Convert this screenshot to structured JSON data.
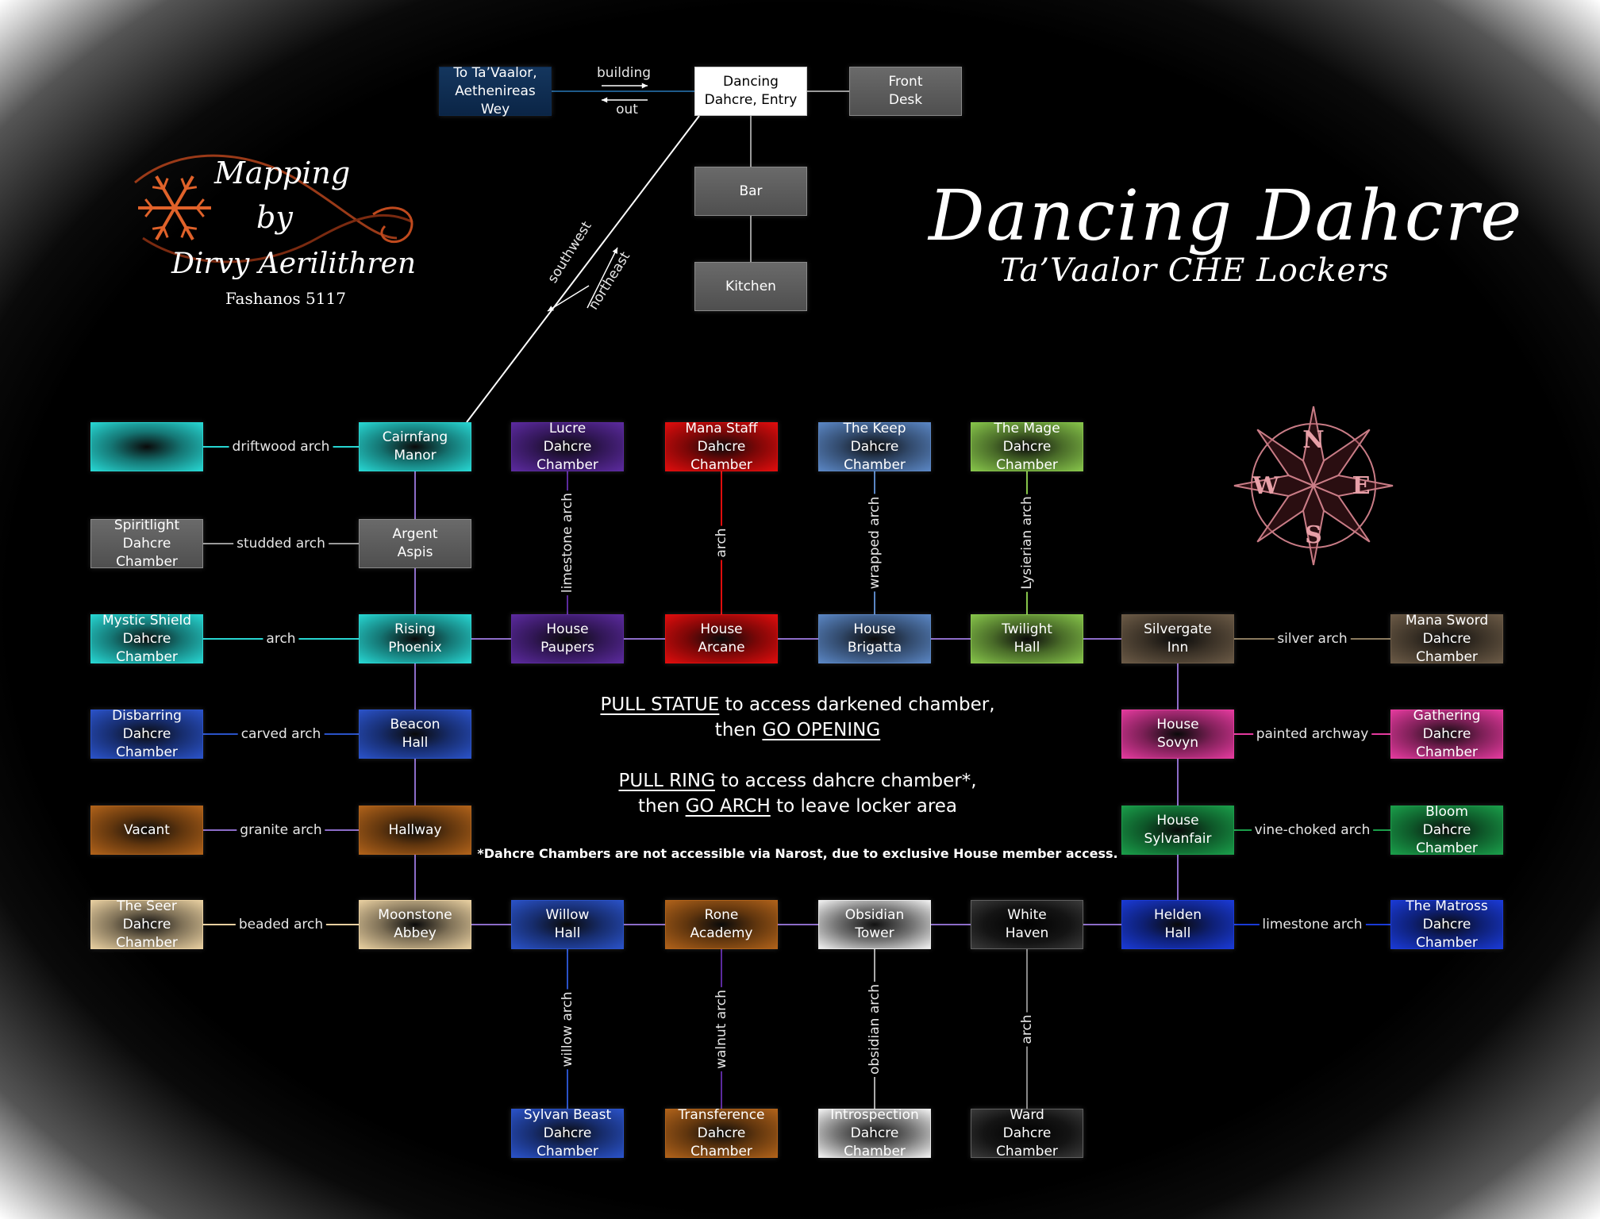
{
  "title": "Dancing Dahcre",
  "subtitle": "Ta’Vaalor CHE Lockers",
  "credit": {
    "line1": "Mapping",
    "line2": "by",
    "author": "Dirvy Aerilithren",
    "date": "Fashanos 5117"
  },
  "instructions": {
    "line1_cmd": "PULL STATUE",
    "line1_rest": " to access darkened chamber,",
    "line2_pre": "then ",
    "line2_cmd": "GO OPENING",
    "line3_cmd": "PULL RING",
    "line3_rest": " to access dahcre chamber*,",
    "line4_pre": "then ",
    "line4_cmd": "GO ARCH",
    "line4_rest": " to leave locker area",
    "footnote": "*Dahcre Chambers are not accessible via Narost, due to exclusive House member access."
  },
  "colors": {
    "teal": "#27d6d2",
    "grey": "#6b6b6b",
    "purple": "#5b2a9e",
    "red": "#e00d0d",
    "steel": "#5a86c4",
    "lime": "#86c44a",
    "taupe": "#6b5a46",
    "pink": "#e43a9e",
    "green": "#1a9e4a",
    "royal": "#1a3ad6",
    "brown": "#b0621a",
    "cream": "#e8cfa0",
    "white": "#e8e8e8",
    "black": "#1a1a1a",
    "navy": "#0d2a4e",
    "blue": "#2a52c8",
    "line": "#8c6cc8"
  },
  "rooms": {
    "to_tavaalor": "To Ta’Vaalor,\nAethenireas Wey",
    "entry": "Dancing\nDahcre, Entry",
    "front_desk": "Front\nDesk",
    "bar": "Bar",
    "kitchen": "Kitchen",
    "darkened": "",
    "cairnfang": "Cairnfang\nManor",
    "lucre": "Lucre\nDahcre Chamber",
    "mana_staff": "Mana Staff\nDahcre Chamber",
    "keep": "The Keep\nDahcre Chamber",
    "mage": "The Mage\nDahcre Chamber",
    "spiritlight": "Spiritlight\nDahcre Chamber",
    "argent": "Argent\nAspis",
    "mystic": "Mystic Shield\nDahcre Chamber",
    "rising": "Rising\nPhoenix",
    "paupers": "House\nPaupers",
    "arcane": "House\nArcane",
    "brigatta": "House\nBrigatta",
    "twilight": "Twilight\nHall",
    "silvergate": "Silvergate\nInn",
    "mana_sword": "Mana Sword\nDahcre Chamber",
    "disbarring": "Disbarring\nDahcre Chamber",
    "beacon": "Beacon\nHall",
    "sovyn": "House\nSovyn",
    "gathering": "Gathering\nDahcre Chamber",
    "vacant": "Vacant",
    "hallway": "Hallway",
    "sylvanfair": "House\nSylvanfair",
    "bloom": "Bloom\nDahcre Chamber",
    "seer": "The Seer\nDahcre Chamber",
    "moonstone": "Moonstone\nAbbey",
    "willow": "Willow\nHall",
    "rone": "Rone\nAcademy",
    "obsidian": "Obsidian\nTower",
    "white_haven": "White\nHaven",
    "helden": "Helden\nHall",
    "matross": "The Matross\nDahcre Chamber",
    "sylvan_beast": "Sylvan Beast\nDahcre Chamber",
    "transference": "Transference\nDahcre Chamber",
    "introspection": "Introspection\nDahcre Chamber",
    "ward": "Ward\nDahcre Chamber"
  },
  "exits": {
    "building": "building",
    "out": "out",
    "southwest": "southwest",
    "northeast": "northeast",
    "driftwood": "driftwood arch",
    "studded": "studded arch",
    "arch_mystic": "arch",
    "carved": "carved arch",
    "granite": "granite arch",
    "beaded": "beaded arch",
    "limestone_lucre": "limestone arch",
    "arch_mana_staff": "arch",
    "wrapped": "wrapped arch",
    "lysierian": "Lysierian arch",
    "silver": "silver arch",
    "painted": "painted archway",
    "vine": "vine-choked arch",
    "limestone_matross": "limestone arch",
    "willow_arch": "willow arch",
    "walnut": "walnut arch",
    "obsidian_arch": "obsidian arch",
    "arch_ward": "arch"
  },
  "compass": {
    "n": "N",
    "e": "E",
    "s": "S",
    "w": "W"
  }
}
